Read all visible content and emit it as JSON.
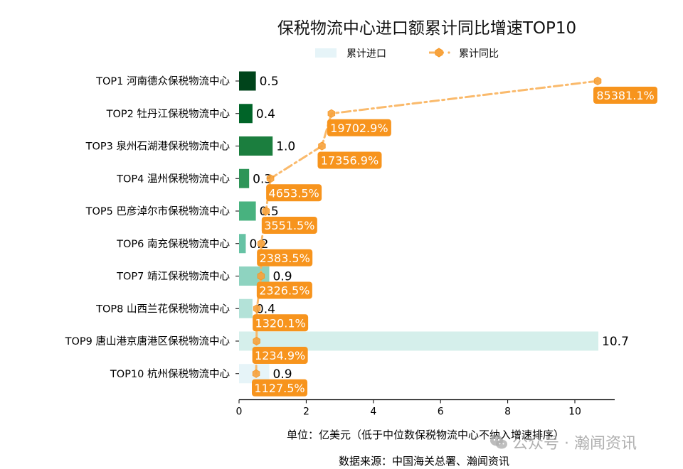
{
  "title": "保税物流中心进口额累计同比增速TOP10",
  "legend": {
    "bar_label": "累计进口",
    "line_label": "累计同比"
  },
  "unit_note": "单位：亿美元（低于中位数保税物流中心不纳入增速排序）",
  "source_note": "数据来源：中国海关总署、瀚闻资讯",
  "watermark": {
    "icon": "wechat-icon",
    "text": "公众号 · 瀚闻资讯"
  },
  "colors": {
    "line": "#f9b25c",
    "marker": "#f7a33e",
    "label_bg": "#f7941d",
    "label_text": "#ffffff",
    "legend_bar": "#e6f4f8",
    "bars": [
      "#00441b",
      "#006428",
      "#1b7e3e",
      "#2e9558",
      "#48b27f",
      "#66c2a4",
      "#8ed3c0",
      "#b3e2d8",
      "#d5efeb",
      "#e6f4f8"
    ]
  },
  "chart_data": {
    "type": "bar",
    "orientation": "horizontal",
    "title": "保税物流中心进口额累计同比增速TOP10",
    "xlabel": "单位：亿美元（低于中位数保税物流中心不纳入增速排序）",
    "ylabel": "",
    "xlim": [
      0,
      11.2
    ],
    "xticks": [
      0,
      2,
      4,
      6,
      8,
      10
    ],
    "grid": false,
    "legend_position": "top-center",
    "categories": [
      "TOP1 河南德众保税物流中心",
      "TOP2 牡丹江保税物流中心",
      "TOP3 泉州石湖港保税物流中心",
      "TOP4 温州保税物流中心",
      "TOP5 巴彦淖尔市保税物流中心",
      "TOP6 南充保税物流中心",
      "TOP7 靖江保税物流中心",
      "TOP8 山西兰花保税物流中心",
      "TOP9 唐山港京唐港区保税物流中心",
      "TOP10 杭州保税物流中心"
    ],
    "series": [
      {
        "name": "累计进口",
        "type": "bar",
        "values": [
          0.5,
          0.4,
          1.0,
          0.3,
          0.5,
          0.2,
          0.9,
          0.4,
          10.7,
          0.9
        ],
        "labels": [
          "0.5",
          "0.4",
          "1.0",
          "0.3",
          "0.5",
          "0.2",
          "0.9",
          "0.4",
          "10.7",
          "0.9"
        ]
      },
      {
        "name": "累计同比",
        "type": "line",
        "unit": "%",
        "values": [
          85381.1,
          19702.9,
          17356.9,
          4653.5,
          3551.5,
          2383.5,
          2326.5,
          1320.1,
          1234.9,
          1127.5
        ],
        "labels": [
          "85381.1%",
          "19702.9%",
          "17356.9%",
          "4653.5%",
          "3551.5%",
          "2383.5%",
          "2326.5%",
          "1320.1%",
          "1234.9%",
          "1127.5%"
        ]
      }
    ]
  }
}
